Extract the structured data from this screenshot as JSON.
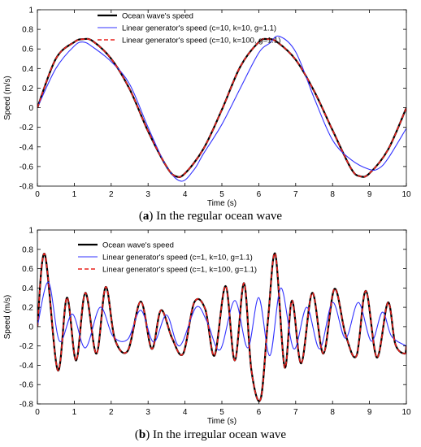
{
  "captions": {
    "a_letter": "a",
    "a_text": "In the regular ocean wave",
    "b_letter": "b",
    "b_text": "In the irregular ocean wave"
  },
  "chart_data": [
    {
      "type": "line",
      "panel": "a",
      "xlabel": "Time (s)",
      "ylabel": "Speed (m/s)",
      "xlim": [
        0,
        10
      ],
      "ylim": [
        -0.8,
        1
      ],
      "xticks": [
        0,
        1,
        2,
        3,
        4,
        5,
        6,
        7,
        8,
        9,
        10
      ],
      "yticks": [
        -0.8,
        -0.6,
        -0.4,
        -0.2,
        0,
        0.2,
        0.4,
        0.6,
        0.8,
        1
      ],
      "legend": "top-left",
      "grid": false,
      "series": [
        {
          "name": "Ocean wave's speed",
          "color": "#000000",
          "style": "solid",
          "x": [
            0,
            0.5,
            1,
            1.25,
            1.5,
            2,
            2.5,
            3,
            3.5,
            3.75,
            4,
            4.5,
            5,
            5.5,
            6,
            6.25,
            6.5,
            7,
            7.5,
            8,
            8.5,
            8.75,
            9,
            9.5,
            10
          ],
          "y": [
            0,
            0.5,
            0.67,
            0.7,
            0.68,
            0.5,
            0.19,
            -0.24,
            -0.6,
            -0.7,
            -0.67,
            -0.42,
            -0.02,
            0.42,
            0.67,
            0.7,
            0.67,
            0.49,
            0.17,
            -0.23,
            -0.62,
            -0.7,
            -0.67,
            -0.43,
            0
          ]
        },
        {
          "name": "Linear generator's speed (c=10, k=10, g=1.1)",
          "color": "#3333ff",
          "style": "solid",
          "x": [
            0,
            0.5,
            1,
            1.25,
            1.5,
            2,
            2.5,
            3,
            3.5,
            3.9,
            4.25,
            4.5,
            5,
            5.5,
            6,
            6.3,
            6.55,
            7,
            7.5,
            8,
            8.5,
            9,
            9.25,
            9.5,
            10
          ],
          "y": [
            0,
            0.4,
            0.63,
            0.67,
            0.62,
            0.47,
            0.24,
            -0.2,
            -0.6,
            -0.75,
            -0.63,
            -0.47,
            -0.17,
            0.2,
            0.56,
            0.66,
            0.73,
            0.57,
            0.1,
            -0.33,
            -0.53,
            -0.63,
            -0.62,
            -0.52,
            -0.21
          ]
        },
        {
          "name": "Linear generator's speed (c=10, k=100, g=1.1)",
          "color": "#e8201c",
          "style": "dashed",
          "x": [
            0,
            0.5,
            1,
            1.25,
            1.5,
            2,
            2.5,
            3,
            3.5,
            3.75,
            4,
            4.5,
            5,
            5.5,
            6,
            6.25,
            6.5,
            7,
            7.5,
            8,
            8.5,
            8.75,
            9,
            9.5,
            10
          ],
          "y": [
            0,
            0.5,
            0.67,
            0.7,
            0.68,
            0.5,
            0.19,
            -0.24,
            -0.6,
            -0.7,
            -0.67,
            -0.42,
            -0.02,
            0.42,
            0.67,
            0.7,
            0.67,
            0.49,
            0.17,
            -0.23,
            -0.62,
            -0.7,
            -0.67,
            -0.43,
            0
          ]
        }
      ]
    },
    {
      "type": "line",
      "panel": "b",
      "xlabel": "Time (s)",
      "ylabel": "Speed (m/s)",
      "xlim": [
        0,
        10
      ],
      "ylim": [
        -0.8,
        1
      ],
      "xticks": [
        0,
        1,
        2,
        3,
        4,
        5,
        6,
        7,
        8,
        9,
        10
      ],
      "yticks": [
        -0.8,
        -0.6,
        -0.4,
        -0.2,
        0,
        0.2,
        0.4,
        0.6,
        0.8,
        1
      ],
      "legend": "top-left",
      "grid": false,
      "series": [
        {
          "name": "Ocean wave's speed",
          "color": "#000000",
          "style": "solid",
          "x": [
            0,
            0.2,
            0.55,
            0.8,
            1.05,
            1.3,
            1.6,
            1.85,
            2.1,
            2.45,
            2.8,
            3.1,
            3.35,
            3.65,
            3.95,
            4.25,
            4.55,
            4.8,
            5.1,
            5.35,
            5.6,
            5.8,
            6.05,
            6.25,
            6.45,
            6.7,
            6.9,
            7.15,
            7.45,
            7.75,
            8.05,
            8.35,
            8.65,
            8.9,
            9.2,
            9.5,
            9.7,
            9.95,
            10
          ],
          "y": [
            0,
            0.75,
            -0.45,
            0.3,
            -0.35,
            0.35,
            -0.28,
            0.41,
            -0.13,
            -0.25,
            0.26,
            -0.23,
            0.17,
            -0.12,
            -0.28,
            0.25,
            0.18,
            -0.3,
            0.42,
            -0.35,
            0.45,
            -0.45,
            -0.75,
            0.07,
            0.75,
            -0.42,
            0.27,
            -0.38,
            0.35,
            -0.28,
            0.39,
            -0.08,
            -0.3,
            0.37,
            -0.32,
            0.25,
            -0.18,
            -0.28,
            -0.2
          ]
        },
        {
          "name": "Linear generator's speed (c=1, k=10, g=1.1)",
          "color": "#3333ff",
          "style": "solid",
          "x": [
            0,
            0.3,
            0.6,
            0.95,
            1.3,
            1.7,
            2.05,
            2.45,
            2.8,
            3.15,
            3.5,
            3.85,
            4.3,
            4.6,
            4.95,
            5.35,
            5.7,
            6.0,
            6.3,
            6.6,
            6.95,
            7.3,
            7.65,
            8.0,
            8.35,
            8.7,
            9.05,
            9.35,
            9.6,
            10
          ],
          "y": [
            0,
            0.46,
            -0.15,
            0.13,
            -0.22,
            0.2,
            -0.1,
            -0.13,
            0.17,
            -0.16,
            0.12,
            -0.2,
            0.2,
            0.05,
            -0.24,
            0.27,
            -0.22,
            0.3,
            -0.3,
            0.4,
            -0.23,
            0.2,
            -0.23,
            0.25,
            -0.12,
            0.25,
            -0.15,
            0.15,
            -0.1,
            -0.2
          ]
        },
        {
          "name": "Linear generator's speed (c=1, k=100, g=1.1)",
          "color": "#e8201c",
          "style": "dashed",
          "x": [
            0,
            0.2,
            0.55,
            0.8,
            1.05,
            1.3,
            1.6,
            1.85,
            2.1,
            2.45,
            2.8,
            3.1,
            3.35,
            3.65,
            3.95,
            4.25,
            4.55,
            4.8,
            5.1,
            5.35,
            5.6,
            5.8,
            6.05,
            6.25,
            6.45,
            6.7,
            6.9,
            7.15,
            7.45,
            7.75,
            8.05,
            8.35,
            8.65,
            8.9,
            9.2,
            9.5,
            9.7,
            9.95,
            10
          ],
          "y": [
            0,
            0.75,
            -0.45,
            0.3,
            -0.35,
            0.35,
            -0.28,
            0.41,
            -0.13,
            -0.25,
            0.26,
            -0.23,
            0.17,
            -0.12,
            -0.28,
            0.25,
            0.18,
            -0.3,
            0.42,
            -0.35,
            0.45,
            -0.45,
            -0.75,
            0.07,
            0.75,
            -0.42,
            0.27,
            -0.38,
            0.35,
            -0.28,
            0.39,
            -0.08,
            -0.3,
            0.37,
            -0.32,
            0.25,
            -0.18,
            -0.28,
            -0.2
          ]
        }
      ]
    }
  ]
}
